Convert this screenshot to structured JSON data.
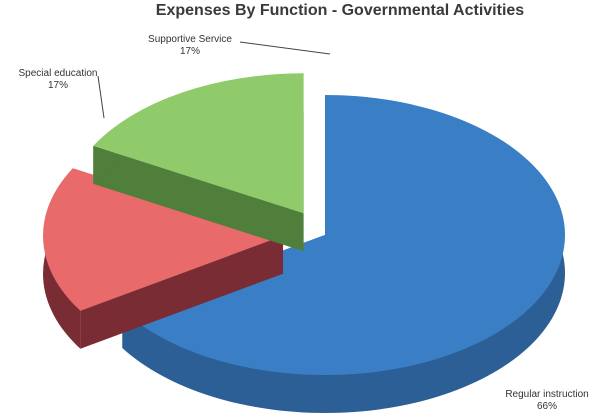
{
  "chart_data": {
    "type": "pie",
    "title": "Expenses By Function - Governmental Activities",
    "categories": [
      "Regular instruction",
      "Special education",
      "Supportive Service"
    ],
    "values": [
      66,
      17,
      17
    ],
    "value_labels": [
      "66%",
      "17%",
      "17%"
    ],
    "colors": [
      "#3a7fc6",
      "#e96a6a",
      "#8fcb6a"
    ],
    "side_colors": [
      "#2c5f95",
      "#7a2c35",
      "#4f7f3a"
    ],
    "style": "3d-exploded",
    "legend": "none"
  }
}
